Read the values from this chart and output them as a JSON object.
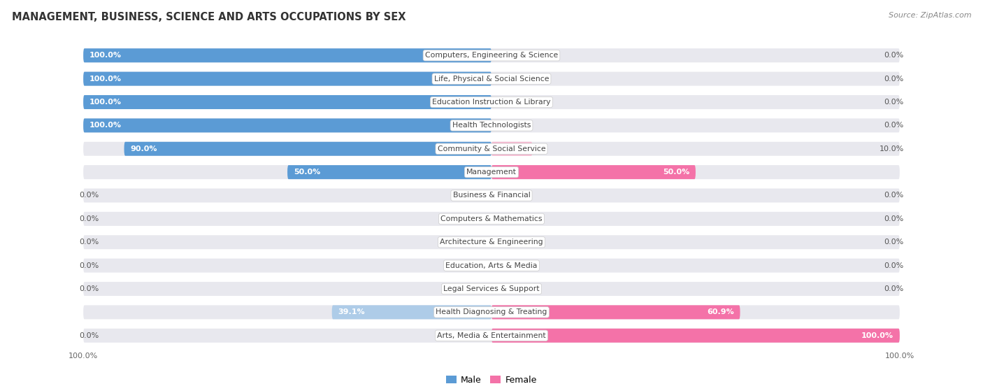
{
  "title": "MANAGEMENT, BUSINESS, SCIENCE AND ARTS OCCUPATIONS BY SEX",
  "source": "Source: ZipAtlas.com",
  "categories": [
    "Computers, Engineering & Science",
    "Life, Physical & Social Science",
    "Education Instruction & Library",
    "Health Technologists",
    "Community & Social Service",
    "Management",
    "Business & Financial",
    "Computers & Mathematics",
    "Architecture & Engineering",
    "Education, Arts & Media",
    "Legal Services & Support",
    "Health Diagnosing & Treating",
    "Arts, Media & Entertainment"
  ],
  "male_pct": [
    100.0,
    100.0,
    100.0,
    100.0,
    90.0,
    50.0,
    0.0,
    0.0,
    0.0,
    0.0,
    0.0,
    39.1,
    0.0
  ],
  "female_pct": [
    0.0,
    0.0,
    0.0,
    0.0,
    10.0,
    50.0,
    0.0,
    0.0,
    0.0,
    0.0,
    0.0,
    60.9,
    100.0
  ],
  "male_color": "#5B9BD5",
  "female_color": "#F472A8",
  "male_color_light": "#AECCE8",
  "female_color_light": "#F5B8D0",
  "background_color": "#FFFFFF",
  "bar_bg_color": "#E8E8EE",
  "legend_male": "Male",
  "legend_female": "Female",
  "title_fontsize": 10.5,
  "source_fontsize": 8,
  "label_fontsize": 8,
  "category_fontsize": 7.8
}
